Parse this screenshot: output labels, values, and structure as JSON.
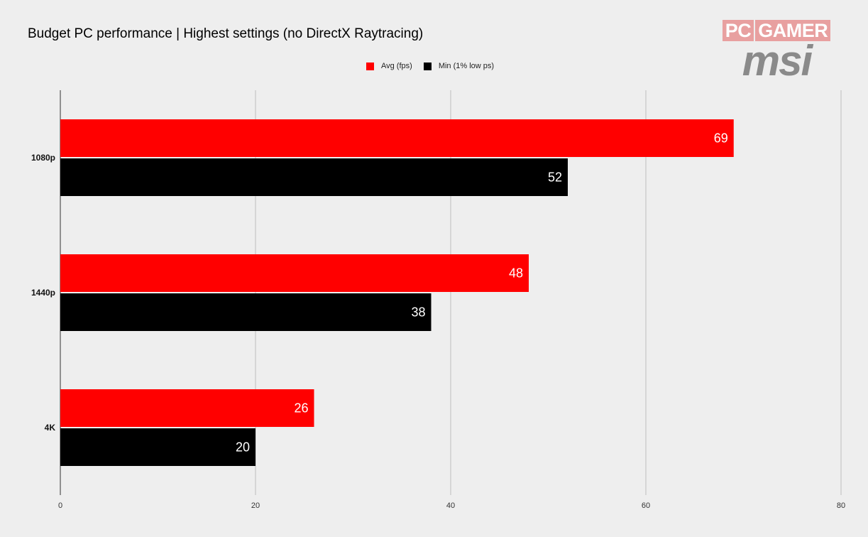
{
  "chart_data": {
    "type": "bar",
    "orientation": "horizontal",
    "title": "Budget PC performance | Highest settings (no DirectX Raytracing)",
    "categories": [
      "1080p",
      "1440p",
      "4K"
    ],
    "series": [
      {
        "name": "Avg (fps)",
        "color": "#ff0000",
        "values": [
          69,
          48,
          26
        ]
      },
      {
        "name": "Min (1% low ps)",
        "color": "#000000",
        "values": [
          52,
          38,
          20
        ]
      }
    ],
    "xlim": [
      0,
      80
    ],
    "xticks": [
      0,
      20,
      40,
      60,
      80
    ],
    "xlabel": "",
    "ylabel": "",
    "grid": true,
    "legend_position": "top-center",
    "data_label_color": "#ffffff"
  },
  "branding": {
    "logo_pc": "PC",
    "logo_gamer": "GAMER",
    "logo_msi": "msi"
  }
}
